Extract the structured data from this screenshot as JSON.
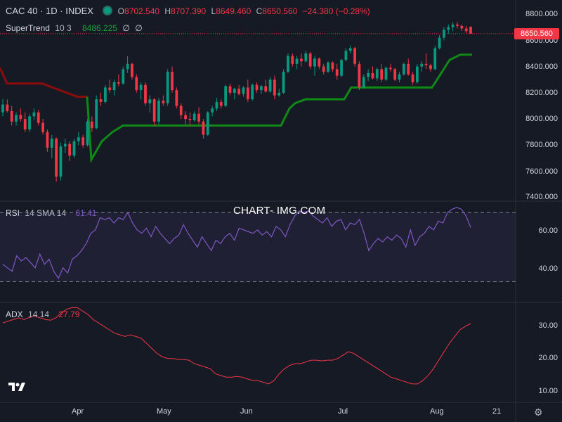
{
  "header": {
    "symbol": "CAC 40 · 1D · INDEX",
    "open": "O8702.540",
    "high": "H8707.390",
    "low": "L8649.460",
    "close": "C8650.560",
    "change": "−24.380 (−0.28%)",
    "supertrend_label": "SuperTrend",
    "supertrend_params": "10 3",
    "supertrend_value": "8486.225",
    "icons": [
      "eye-off-icon",
      "eye-off-icon"
    ]
  },
  "rsi_legend": {
    "label": "RSI",
    "params": "14 SMA 14",
    "value": "61.41"
  },
  "adx_legend": {
    "label": "ADX",
    "params": "14 14",
    "value": "27.79"
  },
  "watermark": "CHART- IMG.COM",
  "price_tag": "8650.560",
  "price_axis": [
    "8800.000",
    "8600.000",
    "8400.000",
    "8200.000",
    "8000.000",
    "7800.000",
    "7600.000",
    "7400.000"
  ],
  "rsi_axis": [
    "60.00",
    "40.00"
  ],
  "adx_axis": [
    "30.00",
    "20.00",
    "10.00"
  ],
  "time_axis": [
    "Apr",
    "May",
    "Jun",
    "Jul",
    "Aug",
    "21"
  ],
  "colors": {
    "up": "#089981",
    "down": "#f23645",
    "supertrend_up": "#0f8a17",
    "supertrend_down": "#8b0c0c",
    "rsi": "#7e57c2",
    "adx": "#f23645",
    "bg": "#161a25"
  },
  "chart_data": [
    {
      "type": "candlestick",
      "title": "CAC 40 · 1D · INDEX",
      "ylim": [
        7400,
        8800
      ],
      "candles_approx": [
        [
          8050,
          8150,
          8020,
          8110
        ],
        [
          8110,
          8150,
          8050,
          8060
        ],
        [
          8060,
          8100,
          7950,
          7980
        ],
        [
          7980,
          8050,
          7950,
          8030
        ],
        [
          8030,
          8080,
          7980,
          8000
        ],
        [
          8000,
          8050,
          7900,
          7920
        ],
        [
          7920,
          8040,
          7900,
          8020
        ],
        [
          8020,
          8080,
          7990,
          8050
        ],
        [
          8050,
          8070,
          7950,
          7970
        ],
        [
          7970,
          8000,
          7880,
          7900
        ],
        [
          7900,
          7920,
          7750,
          7780
        ],
        [
          7780,
          7880,
          7700,
          7850
        ],
        [
          7850,
          7860,
          7520,
          7560
        ],
        [
          7560,
          7820,
          7530,
          7790
        ],
        [
          7790,
          7850,
          7740,
          7810
        ],
        [
          7810,
          7830,
          7680,
          7720
        ],
        [
          7720,
          7850,
          7700,
          7830
        ],
        [
          7830,
          7900,
          7800,
          7860
        ],
        [
          7860,
          7880,
          7780,
          7800
        ],
        [
          7800,
          8000,
          7790,
          7980
        ],
        [
          7980,
          8020,
          7900,
          7930
        ],
        [
          7930,
          8180,
          7920,
          8150
        ],
        [
          8150,
          8200,
          8100,
          8130
        ],
        [
          8130,
          8260,
          8120,
          8240
        ],
        [
          8240,
          8300,
          8200,
          8220
        ],
        [
          8220,
          8300,
          8180,
          8280
        ],
        [
          8280,
          8340,
          8250,
          8270
        ],
        [
          8270,
          8400,
          8260,
          8380
        ],
        [
          8380,
          8480,
          8350,
          8420
        ],
        [
          8420,
          8430,
          8300,
          8320
        ],
        [
          8320,
          8340,
          8200,
          8220
        ],
        [
          8220,
          8280,
          8150,
          8260
        ],
        [
          8260,
          8280,
          8100,
          8120
        ],
        [
          8120,
          8180,
          8050,
          8150
        ],
        [
          8150,
          8160,
          7950,
          7980
        ],
        [
          7980,
          8160,
          7960,
          8140
        ],
        [
          8140,
          8180,
          8100,
          8120
        ],
        [
          8120,
          8380,
          8100,
          8360
        ],
        [
          8360,
          8400,
          8200,
          8220
        ],
        [
          8220,
          8240,
          8080,
          8100
        ],
        [
          8100,
          8120,
          8000,
          8030
        ],
        [
          8030,
          8060,
          7960,
          8000
        ],
        [
          8000,
          8050,
          7950,
          7990
        ],
        [
          7990,
          8060,
          7980,
          8040
        ],
        [
          8040,
          8090,
          7960,
          7980
        ],
        [
          7980,
          8000,
          7850,
          7880
        ],
        [
          7880,
          8060,
          7870,
          8050
        ],
        [
          8050,
          8100,
          8020,
          8080
        ],
        [
          8080,
          8160,
          8060,
          8130
        ],
        [
          8130,
          8150,
          8080,
          8100
        ],
        [
          8100,
          8260,
          8090,
          8250
        ],
        [
          8250,
          8270,
          8180,
          8200
        ],
        [
          8200,
          8240,
          8150,
          8230
        ],
        [
          8230,
          8260,
          8180,
          8190
        ],
        [
          8190,
          8250,
          8170,
          8240
        ],
        [
          8240,
          8300,
          8130,
          8150
        ],
        [
          8150,
          8270,
          8140,
          8260
        ],
        [
          8260,
          8280,
          8200,
          8220
        ],
        [
          8220,
          8260,
          8190,
          8250
        ],
        [
          8250,
          8300,
          8200,
          8210
        ],
        [
          8210,
          8320,
          8200,
          8300
        ],
        [
          8300,
          8330,
          8150,
          8180
        ],
        [
          8180,
          8230,
          8170,
          8200
        ],
        [
          8200,
          8380,
          8190,
          8360
        ],
        [
          8360,
          8500,
          8350,
          8480
        ],
        [
          8480,
          8500,
          8400,
          8420
        ],
        [
          8420,
          8480,
          8380,
          8460
        ],
        [
          8460,
          8500,
          8400,
          8440
        ],
        [
          8440,
          8520,
          8430,
          8500
        ],
        [
          8500,
          8510,
          8380,
          8400
        ],
        [
          8400,
          8480,
          8330,
          8460
        ],
        [
          8460,
          8470,
          8380,
          8400
        ],
        [
          8400,
          8420,
          8340,
          8360
        ],
        [
          8360,
          8440,
          8350,
          8430
        ],
        [
          8430,
          8440,
          8360,
          8380
        ],
        [
          8380,
          8420,
          8300,
          8330
        ],
        [
          8330,
          8460,
          8320,
          8450
        ],
        [
          8450,
          8540,
          8440,
          8520
        ],
        [
          8520,
          8560,
          8500,
          8540
        ],
        [
          8540,
          8550,
          8400,
          8420
        ],
        [
          8420,
          8440,
          8220,
          8240
        ],
        [
          8240,
          8340,
          8230,
          8320
        ],
        [
          8320,
          8380,
          8290,
          8350
        ],
        [
          8350,
          8400,
          8300,
          8310
        ],
        [
          8310,
          8390,
          8290,
          8380
        ],
        [
          8380,
          8420,
          8280,
          8300
        ],
        [
          8300,
          8400,
          8290,
          8390
        ],
        [
          8390,
          8420,
          8360,
          8380
        ],
        [
          8380,
          8390,
          8290,
          8300
        ],
        [
          8300,
          8360,
          8280,
          8340
        ],
        [
          8340,
          8430,
          8330,
          8420
        ],
        [
          8420,
          8460,
          8330,
          8340
        ],
        [
          8340,
          8360,
          8260,
          8280
        ],
        [
          8280,
          8420,
          8270,
          8400
        ],
        [
          8400,
          8440,
          8360,
          8420
        ],
        [
          8420,
          8500,
          8380,
          8410
        ],
        [
          8410,
          8420,
          8360,
          8380
        ],
        [
          8380,
          8560,
          8370,
          8540
        ],
        [
          8540,
          8640,
          8530,
          8620
        ],
        [
          8620,
          8700,
          8600,
          8680
        ],
        [
          8680,
          8720,
          8650,
          8700
        ],
        [
          8700,
          8740,
          8670,
          8720
        ],
        [
          8720,
          8740,
          8690,
          8710
        ],
        [
          8710,
          8720,
          8670,
          8690
        ],
        [
          8690,
          8710,
          8650,
          8670
        ],
        [
          8702.54,
          8707.39,
          8649.46,
          8650.56
        ]
      ]
    },
    {
      "type": "line",
      "title": "RSI 14 SMA 14",
      "ylim": [
        20,
        75
      ],
      "bands": [
        70,
        30
      ],
      "values": [
        40,
        38,
        36,
        45,
        42,
        44,
        41,
        38,
        46,
        40,
        43,
        36,
        32,
        38,
        35,
        43,
        45,
        48,
        52,
        58,
        60,
        67,
        66,
        67,
        64,
        67,
        66,
        70,
        64,
        60,
        58,
        61,
        56,
        62,
        58,
        55,
        52,
        55,
        57,
        63,
        58,
        54,
        50,
        56,
        52,
        48,
        54,
        52,
        56,
        58,
        54,
        61,
        60,
        59,
        58,
        60,
        57,
        59,
        56,
        62,
        60,
        56,
        63,
        68,
        71,
        70,
        71,
        68,
        66,
        64,
        67,
        62,
        65,
        66,
        60,
        64,
        63,
        66,
        58,
        48,
        52,
        55,
        53,
        56,
        54,
        57,
        55,
        50,
        60,
        51,
        56,
        58,
        62,
        60,
        65,
        64,
        70,
        72,
        73,
        72,
        68,
        61.41
      ]
    },
    {
      "type": "line",
      "title": "ADX 14 14",
      "ylim": [
        5,
        33
      ],
      "values": [
        28,
        28.5,
        29,
        29.5,
        29,
        29.6,
        30,
        29.5,
        29,
        28.8,
        29.5,
        31,
        32,
        32.5,
        32.5,
        31.5,
        30.5,
        29,
        28,
        27,
        26,
        25,
        24.5,
        24,
        24.5,
        24,
        23.5,
        22,
        20.5,
        19,
        18,
        17.5,
        17.5,
        17.2,
        17.2,
        17,
        16,
        15.5,
        15,
        14.5,
        13,
        12.5,
        12,
        12,
        12.2,
        12,
        11.5,
        11,
        11,
        10.5,
        10,
        11,
        13,
        14.5,
        15.5,
        16,
        16,
        16.5,
        17,
        17,
        16.8,
        17,
        17,
        17.5,
        18.5,
        19.5,
        19,
        18,
        17,
        16,
        15,
        14,
        13,
        12,
        11.5,
        11,
        10.5,
        10,
        10,
        11,
        12.5,
        14.5,
        17,
        19.5,
        22,
        24,
        26,
        27,
        27.79
      ]
    }
  ]
}
